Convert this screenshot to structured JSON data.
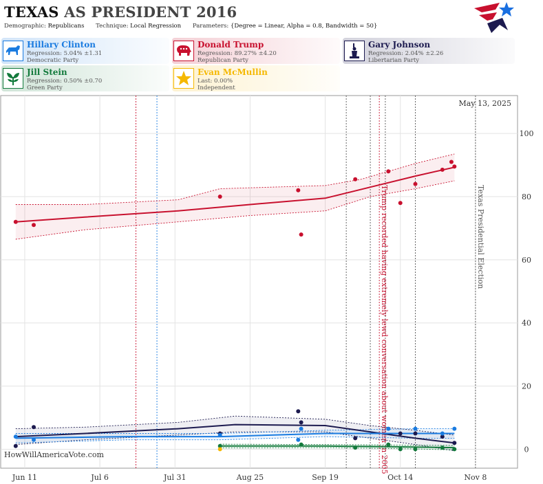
{
  "header": {
    "title_state": "TEXAS",
    "title_rest": " AS PRESIDENT 2016",
    "demographic_label": "Demographic:",
    "demographic_value": "Republicans",
    "technique_label": "Technique:",
    "technique_value": "Local Regression",
    "parameters_label": "Parameters:",
    "parameters_value": "{Degree = Linear, Alpha = 0.8, Bandwidth = 50}"
  },
  "candidates": [
    {
      "name": "Hillary Clinton",
      "stat": "Regression: 5.04% ±1.31",
      "party": "Democratic Party",
      "color": "#1a7be0",
      "icon": "donkey-icon"
    },
    {
      "name": "Donald Trump",
      "stat": "Regression: 89.27% ±4.20",
      "party": "Republican Party",
      "color": "#c8102e",
      "icon": "elephant-icon"
    },
    {
      "name": "Gary Johnson",
      "stat": "Regression: 2.04% ±2.26",
      "party": "Libertarian Party",
      "color": "#1c1a4f",
      "icon": "liberty-statue-icon"
    },
    {
      "name": "Jill Stein",
      "stat": "Regression: 0.50% ±0.70",
      "party": "Green Party",
      "color": "#137a3c",
      "icon": "plant-icon"
    },
    {
      "name": "Evan McMullin",
      "stat": "Last: 0.00%",
      "party": "Independent",
      "color": "#f5b800",
      "icon": "star-icon"
    }
  ],
  "chart_data": {
    "type": "scatter",
    "date_stamp": "May 13, 2025",
    "watermark": "HowWillAmericaVote.com",
    "x_ticks": [
      "Jun 11",
      "Jul 6",
      "Jul 31",
      "Aug 25",
      "Sep 19",
      "Oct 14",
      "Nov 8"
    ],
    "y_ticks": [
      "0",
      "20",
      "40",
      "60",
      "80",
      "100"
    ],
    "xlim": [
      "2016-06-03",
      "2016-11-22"
    ],
    "ylim": [
      -6,
      112
    ],
    "annotations": [
      {
        "text": "Trump recorded having extremely lewd conversation about women in 2005",
        "date": "2016-10-07",
        "color": "#c8102e"
      },
      {
        "text": "Texas Presidential Election",
        "date": "2016-11-08",
        "color": "#555555"
      }
    ],
    "event_lines": [
      {
        "date": "2016-07-18",
        "color": "#c8102e"
      },
      {
        "date": "2016-07-25",
        "color": "#1a7be0"
      },
      {
        "date": "2016-09-26",
        "color": "#555555"
      },
      {
        "date": "2016-10-04",
        "color": "#555555"
      },
      {
        "date": "2016-10-07",
        "color": "#c8102e"
      },
      {
        "date": "2016-10-09",
        "color": "#555555"
      },
      {
        "date": "2016-10-19",
        "color": "#555555"
      },
      {
        "date": "2016-11-08",
        "color": "#555555"
      }
    ],
    "series": [
      {
        "name": "Donald Trump",
        "color": "#c8102e",
        "points": [
          [
            "2016-06-08",
            72
          ],
          [
            "2016-06-14",
            71
          ],
          [
            "2016-08-15",
            80
          ],
          [
            "2016-09-10",
            82
          ],
          [
            "2016-09-11",
            68
          ],
          [
            "2016-09-29",
            85.5
          ],
          [
            "2016-10-10",
            88
          ],
          [
            "2016-10-14",
            78
          ],
          [
            "2016-10-19",
            84
          ],
          [
            "2016-10-28",
            88.5
          ],
          [
            "2016-10-31",
            91
          ],
          [
            "2016-11-01",
            89.5
          ]
        ],
        "trend": [
          [
            "2016-06-08",
            72
          ],
          [
            "2016-07-01",
            73.5
          ],
          [
            "2016-08-01",
            75.5
          ],
          [
            "2016-08-25",
            77.5
          ],
          [
            "2016-09-19",
            79.5
          ],
          [
            "2016-10-04",
            83
          ],
          [
            "2016-10-19",
            86.5
          ],
          [
            "2016-11-01",
            89.3
          ]
        ],
        "upper": [
          [
            "2016-06-08",
            77.5
          ],
          [
            "2016-07-01",
            77.5
          ],
          [
            "2016-08-01",
            79
          ],
          [
            "2016-08-15",
            82.5
          ],
          [
            "2016-09-01",
            83
          ],
          [
            "2016-09-19",
            83.5
          ],
          [
            "2016-10-01",
            85.5
          ],
          [
            "2016-10-19",
            90.5
          ],
          [
            "2016-11-01",
            93.5
          ]
        ],
        "lower": [
          [
            "2016-06-08",
            66.5
          ],
          [
            "2016-07-01",
            69.5
          ],
          [
            "2016-08-01",
            72
          ],
          [
            "2016-08-25",
            74
          ],
          [
            "2016-09-19",
            75.5
          ],
          [
            "2016-10-04",
            80
          ],
          [
            "2016-10-19",
            82.5
          ],
          [
            "2016-11-01",
            85
          ]
        ]
      },
      {
        "name": "Gary Johnson",
        "color": "#1c1a4f",
        "points": [
          [
            "2016-06-08",
            1
          ],
          [
            "2016-06-14",
            7
          ],
          [
            "2016-08-15",
            5
          ],
          [
            "2016-09-10",
            12
          ],
          [
            "2016-09-11",
            8.5
          ],
          [
            "2016-09-29",
            3.5
          ],
          [
            "2016-10-14",
            5
          ],
          [
            "2016-10-19",
            5
          ],
          [
            "2016-10-28",
            4
          ],
          [
            "2016-11-01",
            2
          ]
        ],
        "trend": [
          [
            "2016-06-08",
            4
          ],
          [
            "2016-07-01",
            5
          ],
          [
            "2016-08-01",
            6.5
          ],
          [
            "2016-08-20",
            7.8
          ],
          [
            "2016-09-19",
            7.5
          ],
          [
            "2016-10-04",
            5.5
          ],
          [
            "2016-10-19",
            3.5
          ],
          [
            "2016-11-01",
            2
          ]
        ],
        "upper": [
          [
            "2016-06-08",
            6.5
          ],
          [
            "2016-07-01",
            7
          ],
          [
            "2016-08-01",
            8.5
          ],
          [
            "2016-08-20",
            10.5
          ],
          [
            "2016-09-19",
            9.5
          ],
          [
            "2016-10-04",
            7.5
          ],
          [
            "2016-10-19",
            6
          ],
          [
            "2016-11-01",
            4.5
          ]
        ],
        "lower": [
          [
            "2016-06-08",
            1.5
          ],
          [
            "2016-07-01",
            3
          ],
          [
            "2016-08-01",
            4.5
          ],
          [
            "2016-08-20",
            5.5
          ],
          [
            "2016-09-19",
            5.5
          ],
          [
            "2016-10-04",
            3.5
          ],
          [
            "2016-10-19",
            1.5
          ],
          [
            "2016-11-01",
            -0.5
          ]
        ]
      },
      {
        "name": "Hillary Clinton",
        "color": "#1a7be0",
        "points": [
          [
            "2016-06-08",
            4
          ],
          [
            "2016-06-14",
            3
          ],
          [
            "2016-08-15",
            4.5
          ],
          [
            "2016-09-10",
            3
          ],
          [
            "2016-09-11",
            6.5
          ],
          [
            "2016-10-10",
            6.5
          ],
          [
            "2016-10-19",
            6.5
          ],
          [
            "2016-10-28",
            5
          ],
          [
            "2016-11-01",
            6.5
          ]
        ],
        "trend": [
          [
            "2016-06-08",
            3.5
          ],
          [
            "2016-07-15",
            4
          ],
          [
            "2016-08-15",
            4
          ],
          [
            "2016-09-19",
            5
          ],
          [
            "2016-10-19",
            5
          ],
          [
            "2016-11-01",
            5
          ]
        ],
        "upper": [
          [
            "2016-06-08",
            5
          ],
          [
            "2016-07-15",
            5
          ],
          [
            "2016-08-15",
            5
          ],
          [
            "2016-09-19",
            6
          ],
          [
            "2016-10-19",
            6.5
          ],
          [
            "2016-11-01",
            6.5
          ]
        ],
        "lower": [
          [
            "2016-06-08",
            2
          ],
          [
            "2016-07-15",
            3
          ],
          [
            "2016-08-15",
            3
          ],
          [
            "2016-09-19",
            4
          ],
          [
            "2016-10-19",
            3.5
          ],
          [
            "2016-11-01",
            3.5
          ]
        ]
      },
      {
        "name": "Jill Stein",
        "color": "#137a3c",
        "points": [
          [
            "2016-08-15",
            1
          ],
          [
            "2016-09-11",
            1.5
          ],
          [
            "2016-09-29",
            0.5
          ],
          [
            "2016-10-10",
            1.5
          ],
          [
            "2016-10-14",
            0
          ],
          [
            "2016-10-19",
            0
          ],
          [
            "2016-10-28",
            0.5
          ],
          [
            "2016-11-01",
            0
          ]
        ],
        "trend": [
          [
            "2016-08-15",
            1
          ],
          [
            "2016-09-19",
            1
          ],
          [
            "2016-10-19",
            0.7
          ],
          [
            "2016-11-01",
            0.5
          ]
        ],
        "upper": [
          [
            "2016-08-15",
            1.6
          ],
          [
            "2016-09-19",
            1.5
          ],
          [
            "2016-10-19",
            1.3
          ],
          [
            "2016-11-01",
            1.2
          ]
        ],
        "lower": [
          [
            "2016-08-15",
            0.4
          ],
          [
            "2016-09-19",
            0.5
          ],
          [
            "2016-10-19",
            0.1
          ],
          [
            "2016-11-01",
            -0.2
          ]
        ]
      },
      {
        "name": "Evan McMullin",
        "color": "#f5b800",
        "points": [
          [
            "2016-08-15",
            0
          ]
        ],
        "trend": [],
        "upper": [],
        "lower": []
      }
    ]
  }
}
